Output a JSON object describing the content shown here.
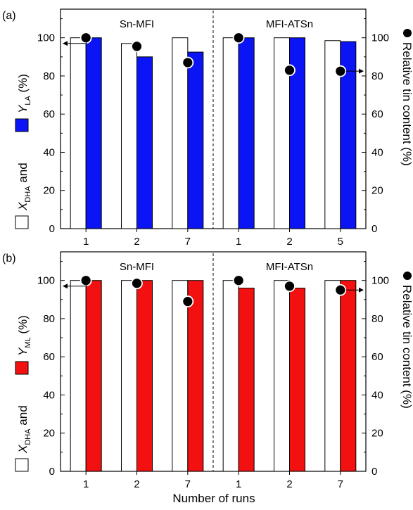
{
  "figure": {
    "xlabel": "Number of runs"
  },
  "chart_data": [
    {
      "type": "bar",
      "panel_label": "(a)",
      "groups": [
        "Sn-MFI",
        "MFI-ATSn"
      ],
      "categories": [
        "1",
        "2",
        "7",
        "1",
        "2",
        "5"
      ],
      "ylabel_left": {
        "pre": "X",
        "sub1": "DHA",
        "mid": " and ",
        "y": "Y",
        "sub2": "LA",
        "post": " (%)"
      },
      "ylabel_right": "Relative tin content (%)",
      "ylim": [
        0,
        115
      ],
      "yticks": [
        "0",
        "20",
        "40",
        "60",
        "80",
        "100"
      ],
      "grid": false,
      "series": [
        {
          "name": "X_DHA",
          "kind": "bar",
          "color": "#ffffff",
          "values": [
            100,
            97,
            100,
            100,
            100,
            98.5
          ]
        },
        {
          "name": "Y_LA",
          "kind": "bar",
          "color": "#0a14f5",
          "values": [
            100,
            90,
            92.5,
            100,
            100,
            98
          ]
        },
        {
          "name": "Relative tin content",
          "kind": "marker",
          "color": "#000000",
          "axis": "right",
          "values": [
            100,
            95.5,
            87,
            100,
            83,
            82.5
          ]
        }
      ]
    },
    {
      "type": "bar",
      "panel_label": "(b)",
      "groups": [
        "Sn-MFI",
        "MFI-ATSn"
      ],
      "categories": [
        "1",
        "2",
        "7",
        "1",
        "2",
        "7"
      ],
      "ylabel_left": {
        "pre": "X",
        "sub1": "DHA",
        "mid": " and ",
        "y": "Y",
        "sub2": "ML",
        "post": " (%)"
      },
      "ylabel_right": "Relative tin content (%)",
      "ylim": [
        0,
        115
      ],
      "yticks": [
        "0",
        "20",
        "40",
        "60",
        "80",
        "100"
      ],
      "grid": false,
      "series": [
        {
          "name": "X_DHA",
          "kind": "bar",
          "color": "#ffffff",
          "values": [
            100,
            100,
            100,
            100,
            100,
            100
          ]
        },
        {
          "name": "Y_ML",
          "kind": "bar",
          "color": "#f21010",
          "values": [
            100,
            100,
            100,
            96,
            96,
            100
          ]
        },
        {
          "name": "Relative tin content",
          "kind": "marker",
          "color": "#000000",
          "axis": "right",
          "values": [
            100,
            98.5,
            89,
            100,
            97,
            95
          ]
        }
      ]
    }
  ]
}
